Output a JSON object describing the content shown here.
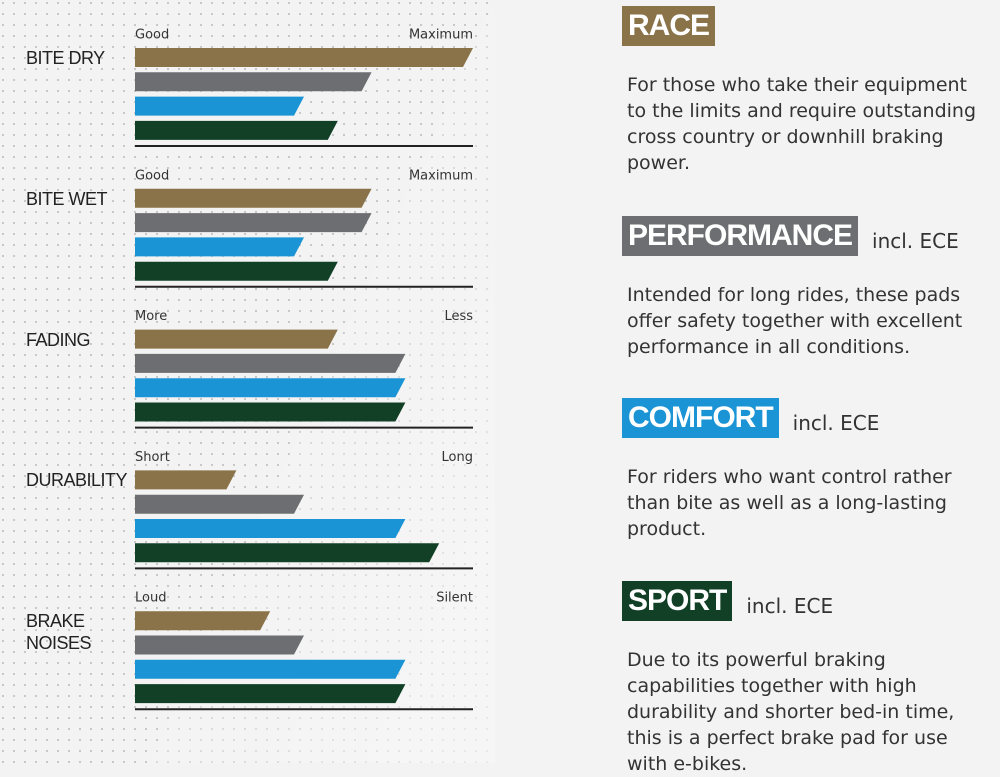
{
  "chart_data": {
    "type": "bar",
    "categories": [
      "BITE DRY",
      "BITE WET",
      "FADING",
      "DURABILITY",
      "BRAKE NOISES"
    ],
    "scale_labels": [
      [
        "Good",
        "Maximum"
      ],
      [
        "Good",
        "Maximum"
      ],
      [
        "More",
        "Less"
      ],
      [
        "Short",
        "Long"
      ],
      [
        "Loud",
        "Silent"
      ]
    ],
    "xlim": [
      0,
      100
    ],
    "series": [
      {
        "name": "RACE",
        "color": "#8a7249",
        "values": [
          100,
          70,
          60,
          30,
          40
        ],
        "description": "For those who take their equipment to the limits and require outstanding cross country or downhill braking power."
      },
      {
        "name": "PERFORMANCE",
        "color": "#6d6e71",
        "values": [
          70,
          70,
          80,
          50,
          50
        ],
        "note": "incl. ECE",
        "description": "Intended for long rides, these pads offer safety together with excellent performance in all conditions."
      },
      {
        "name": "COMFORT",
        "color": "#1a94d4",
        "values": [
          50,
          50,
          80,
          80,
          80
        ],
        "note": "incl. ECE",
        "description": "For riders who want control rather than bite as well as a long-lasting product."
      },
      {
        "name": "SPORT",
        "color": "#124027",
        "values": [
          60,
          60,
          80,
          90,
          80
        ],
        "note": "incl. ECE",
        "description": "Due to its powerful braking capabilities together with high durability and shorter bed-in time, this is a perfect brake pad for use with e-bikes."
      }
    ]
  }
}
